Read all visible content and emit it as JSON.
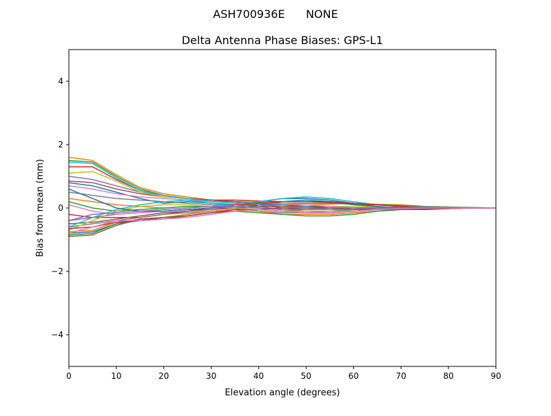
{
  "chart_data": {
    "type": "line",
    "suptitle": "ASH700936E      NONE",
    "title": "Delta Antenna Phase Biases: GPS-L1",
    "xlabel": "Elevation angle (degrees)",
    "ylabel": "Bias from mean (mm)",
    "xlim": [
      0,
      90
    ],
    "ylim": [
      -5,
      5
    ],
    "xticks": [
      0,
      10,
      20,
      30,
      40,
      50,
      60,
      70,
      80,
      90
    ],
    "yticks": [
      -4,
      -2,
      0,
      2,
      4
    ],
    "grid": false,
    "colors": [
      "#1f77b4",
      "#ff7f0e",
      "#2ca02c",
      "#d62728",
      "#9467bd",
      "#8c564b",
      "#e377c2",
      "#7f7f7f",
      "#bcbd22",
      "#17becf"
    ],
    "x": [
      0,
      5,
      10,
      15,
      20,
      25,
      30,
      35,
      40,
      45,
      50,
      55,
      60,
      65,
      70,
      75,
      80,
      85,
      90
    ],
    "series": [
      {
        "values": [
          0.8,
          0.7,
          0.5,
          0.3,
          0.15,
          0.2,
          0.15,
          0.1,
          0.2,
          0.3,
          0.3,
          0.25,
          0.15,
          0.05,
          0,
          0,
          0,
          0,
          0
        ]
      },
      {
        "values": [
          1.6,
          1.5,
          1.05,
          0.65,
          0.45,
          0.35,
          0.25,
          0.2,
          0.15,
          0.1,
          0.1,
          0.12,
          0.15,
          0.12,
          0.1,
          0.05,
          0.03,
          0.02,
          0
        ]
      },
      {
        "values": [
          1.5,
          1.45,
          1.0,
          0.6,
          0.4,
          0.3,
          0.25,
          0.2,
          0.18,
          0.15,
          0.15,
          0.15,
          0.12,
          0.1,
          0.08,
          0.05,
          0.03,
          0.01,
          0
        ]
      },
      {
        "values": [
          1.3,
          1.3,
          0.9,
          0.55,
          0.4,
          0.3,
          0.25,
          0.25,
          0.22,
          0.2,
          0.2,
          0.18,
          0.15,
          0.1,
          0.05,
          0.03,
          0.02,
          0.01,
          0
        ]
      },
      {
        "values": [
          1.0,
          0.9,
          0.7,
          0.5,
          0.4,
          0.3,
          0.25,
          0.15,
          0.05,
          -0.05,
          -0.1,
          -0.1,
          -0.05,
          0,
          0.02,
          0.02,
          0.01,
          0,
          0
        ]
      },
      {
        "values": [
          0.85,
          0.8,
          0.6,
          0.45,
          0.35,
          0.3,
          0.25,
          0.2,
          0.1,
          0.0,
          -0.05,
          -0.05,
          0,
          0.02,
          0.03,
          0.02,
          0.01,
          0,
          0
        ]
      },
      {
        "values": [
          0.7,
          0.6,
          0.45,
          0.35,
          0.3,
          0.25,
          0.2,
          0.15,
          0.1,
          0.05,
          0,
          -0.05,
          -0.05,
          -0.03,
          0,
          0,
          0,
          0,
          0
        ]
      },
      {
        "values": [
          0.5,
          0.4,
          0.3,
          0.25,
          0.2,
          0.15,
          0.1,
          0.05,
          0.0,
          -0.05,
          -0.1,
          -0.1,
          -0.1,
          -0.05,
          -0.03,
          -0.02,
          0,
          0,
          0
        ]
      },
      {
        "values": [
          1.1,
          1.15,
          0.85,
          0.5,
          0.35,
          0.3,
          0.2,
          0.15,
          0.1,
          0.05,
          0.05,
          0.05,
          0.05,
          0.03,
          0.0,
          -0.02,
          -0.02,
          0,
          0
        ]
      },
      {
        "values": [
          1.45,
          1.4,
          0.95,
          0.55,
          0.4,
          0.3,
          0.2,
          0.15,
          0.2,
          0.3,
          0.35,
          0.3,
          0.2,
          0.1,
          0.05,
          0.05,
          0.02,
          0.01,
          0
        ]
      },
      {
        "values": [
          -0.8,
          -0.75,
          -0.5,
          -0.35,
          -0.3,
          -0.2,
          -0.1,
          -0.05,
          0.1,
          0.2,
          0.25,
          0.2,
          0.1,
          0.05,
          0,
          0,
          0,
          0,
          0
        ]
      },
      {
        "values": [
          0.3,
          0.2,
          0.1,
          0.05,
          0.0,
          0.05,
          0.05,
          0.1,
          0.1,
          0.05,
          0,
          -0.05,
          -0.05,
          0,
          0.02,
          0.02,
          0.01,
          0,
          0
        ]
      },
      {
        "values": [
          0.2,
          0.0,
          -0.1,
          -0.05,
          0.0,
          0.05,
          0.05,
          0.0,
          -0.1,
          -0.2,
          -0.2,
          -0.2,
          -0.15,
          -0.1,
          -0.05,
          -0.02,
          0,
          0,
          0
        ]
      },
      {
        "values": [
          -0.2,
          -0.3,
          -0.3,
          -0.3,
          -0.2,
          -0.1,
          0,
          0.1,
          0.15,
          0.2,
          0.2,
          0.2,
          0.15,
          0.1,
          0.05,
          0.03,
          0.01,
          0,
          0
        ]
      },
      {
        "values": [
          -0.4,
          -0.3,
          -0.2,
          -0.15,
          -0.1,
          -0.05,
          0,
          0,
          -0.05,
          -0.1,
          -0.15,
          -0.15,
          -0.1,
          -0.05,
          -0.02,
          0,
          0,
          0,
          0
        ]
      },
      {
        "values": [
          -0.5,
          -0.45,
          -0.35,
          -0.25,
          -0.15,
          -0.1,
          -0.05,
          0,
          0.05,
          0.05,
          0.05,
          0.05,
          0,
          0,
          0,
          0,
          0,
          0,
          0
        ]
      },
      {
        "values": [
          0.1,
          -0.1,
          -0.2,
          -0.15,
          -0.1,
          -0.05,
          0,
          0.05,
          0.1,
          0.15,
          0.1,
          0.05,
          0,
          -0.02,
          -0.03,
          -0.02,
          0,
          0,
          0
        ]
      },
      {
        "values": [
          -0.6,
          -0.5,
          -0.4,
          -0.3,
          -0.2,
          -0.15,
          -0.1,
          -0.05,
          -0.1,
          -0.15,
          -0.15,
          -0.1,
          -0.05,
          0,
          0.02,
          0.02,
          0,
          0,
          0
        ]
      },
      {
        "values": [
          -0.7,
          -0.4,
          -0.1,
          0.05,
          0.1,
          0.1,
          0.05,
          0.0,
          -0.05,
          -0.1,
          -0.1,
          -0.1,
          -0.1,
          -0.05,
          -0.02,
          0,
          0,
          0,
          0
        ]
      },
      {
        "values": [
          -0.6,
          -0.3,
          -0.05,
          0.1,
          0.2,
          0.25,
          0.15,
          0.05,
          0.0,
          -0.05,
          -0.05,
          -0.05,
          -0.05,
          -0.05,
          -0.03,
          0,
          0,
          0,
          0
        ]
      },
      {
        "values": [
          0.6,
          0.3,
          0.0,
          -0.1,
          -0.1,
          -0.05,
          0,
          0.05,
          0.1,
          0.1,
          0.05,
          0,
          0,
          0,
          0,
          0,
          0,
          0,
          0
        ]
      },
      {
        "values": [
          -0.75,
          -0.7,
          -0.45,
          -0.35,
          -0.3,
          -0.2,
          -0.1,
          -0.05,
          -0.1,
          -0.2,
          -0.2,
          -0.2,
          -0.15,
          -0.1,
          -0.05,
          -0.05,
          -0.02,
          0,
          0
        ]
      },
      {
        "values": [
          -0.85,
          -0.8,
          -0.5,
          -0.4,
          -0.35,
          -0.25,
          -0.15,
          -0.1,
          -0.15,
          -0.2,
          -0.25,
          -0.25,
          -0.2,
          -0.1,
          -0.05,
          -0.02,
          0,
          0,
          0
        ]
      },
      {
        "values": [
          -0.65,
          -0.6,
          -0.45,
          -0.4,
          -0.3,
          -0.25,
          -0.15,
          -0.05,
          -0.05,
          -0.1,
          -0.15,
          -0.15,
          -0.1,
          -0.05,
          -0.05,
          -0.05,
          -0.02,
          0,
          0
        ]
      },
      {
        "values": [
          -0.4,
          -0.2,
          -0.15,
          -0.1,
          -0.05,
          0.0,
          0.05,
          0.05,
          0.0,
          -0.05,
          -0.05,
          0,
          0,
          0,
          0,
          0,
          0,
          0,
          0
        ]
      },
      {
        "values": [
          -0.9,
          -0.85,
          -0.55,
          -0.35,
          -0.3,
          -0.25,
          -0.15,
          -0.1,
          -0.05,
          0,
          0,
          0,
          -0.05,
          -0.05,
          -0.05,
          -0.03,
          -0.02,
          0,
          0
        ]
      },
      {
        "values": [
          -0.8,
          -0.6,
          -0.4,
          -0.4,
          -0.35,
          -0.3,
          -0.2,
          -0.1,
          -0.05,
          -0.1,
          -0.15,
          -0.15,
          -0.1,
          -0.05,
          -0.02,
          0,
          0,
          0,
          0
        ]
      }
    ]
  }
}
